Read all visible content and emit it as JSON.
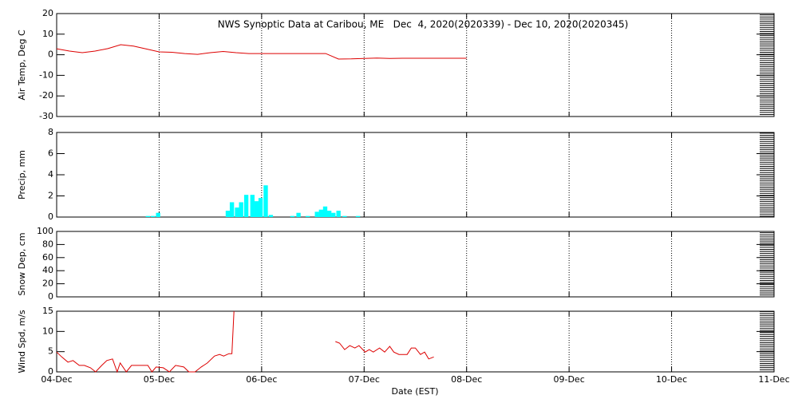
{
  "chart_data": [
    {
      "type": "line",
      "title": "NWS Synoptic Data at Caribou, ME   Dec  4, 2020(2020339) - Dec 10, 2020(2020345)",
      "y_label": "Air Temp, Deg C",
      "color": "#dd0000",
      "ylim": [
        -30,
        20
      ],
      "yticks": [
        -30,
        -20,
        -10,
        0,
        10,
        20
      ],
      "x": [
        0,
        0.125,
        0.25,
        0.375,
        0.5,
        0.625,
        0.75,
        0.875,
        1,
        1.125,
        1.25,
        1.375,
        1.5,
        1.625,
        1.75,
        1.875,
        2,
        2.125,
        2.25,
        2.375,
        2.5,
        2.625,
        2.75,
        2.875,
        3,
        3.125,
        3.25,
        3.375,
        3.5,
        3.625,
        3.75,
        3.875,
        4
      ],
      "values": [
        2.9,
        1.8,
        1.0,
        1.8,
        3.0,
        4.9,
        4.2,
        2.8,
        1.4,
        1.2,
        0.6,
        0.2,
        1.0,
        1.6,
        1.0,
        0.6,
        0.6,
        0.6,
        0.6,
        0.6,
        0.6,
        0.6,
        -2.1,
        -2.0,
        -1.8,
        -1.6,
        -1.8,
        -1.7,
        -1.7,
        -1.7,
        -1.7,
        -1.7,
        -1.7
      ]
    },
    {
      "type": "bar",
      "y_label": "Precip, mm",
      "color": "#00ffff",
      "ylim": [
        0,
        8
      ],
      "yticks": [
        0,
        2,
        4,
        6,
        8
      ],
      "x": [
        0.89,
        0.94,
        0.99,
        1.67,
        1.71,
        1.76,
        1.8,
        1.85,
        1.91,
        1.95,
        1.99,
        2.04,
        2.09,
        2.3,
        2.36,
        2.45,
        2.54,
        2.58,
        2.62,
        2.66,
        2.7,
        2.75,
        2.81,
        2.94
      ],
      "values": [
        0.1,
        0.1,
        0.4,
        0.6,
        1.4,
        0.9,
        1.4,
        2.1,
        2.1,
        1.5,
        1.8,
        3.0,
        0.2,
        0.1,
        0.4,
        0.1,
        0.5,
        0.7,
        1.0,
        0.6,
        0.4,
        0.6,
        0.1,
        0.1
      ]
    },
    {
      "type": "line",
      "y_label": "Snow Dep, cm",
      "ylim": [
        0,
        100
      ],
      "yticks": [
        0,
        20,
        40,
        60,
        80,
        100
      ]
    },
    {
      "type": "line",
      "y_label": "Wind Spd, m/s",
      "x_label": "Date (EST)",
      "color": "#dd0000",
      "ylim": [
        0,
        15
      ],
      "yticks": [
        0,
        5,
        10,
        15
      ],
      "xlim": [
        0,
        7
      ],
      "xticks": [
        {
          "value": 0,
          "label": "04-Dec"
        },
        {
          "value": 1,
          "label": "05-Dec"
        },
        {
          "value": 2,
          "label": "06-Dec"
        },
        {
          "value": 3,
          "label": "07-Dec"
        },
        {
          "value": 4,
          "label": "08-Dec"
        },
        {
          "value": 5,
          "label": "09-Dec"
        },
        {
          "value": 6,
          "label": "10-Dec"
        },
        {
          "value": 7,
          "label": "11-Dec"
        }
      ],
      "x": [
        0,
        0.05,
        0.11,
        0.16,
        0.22,
        0.27,
        0.33,
        0.38,
        0.44,
        0.49,
        0.545,
        0.59,
        0.62,
        0.68,
        0.73,
        0.81,
        0.89,
        0.93,
        0.97,
        1.04,
        1.1,
        1.16,
        1.24,
        1.29,
        1.35,
        1.41,
        1.47,
        1.54,
        1.59,
        1.63,
        1.68,
        1.71,
        1.73,
        2.2,
        2.72,
        2.76,
        2.81,
        2.86,
        2.91,
        2.95,
        3.01,
        3.05,
        3.09,
        3.15,
        3.2,
        3.25,
        3.29,
        3.34,
        3.42,
        3.46,
        3.5,
        3.55,
        3.59,
        3.63,
        3.68
      ],
      "values": [
        4.9,
        3.7,
        2.4,
        2.8,
        1.6,
        1.6,
        1.0,
        0,
        1.6,
        2.8,
        3.2,
        0,
        2.2,
        0,
        1.6,
        1.6,
        1.6,
        0,
        1.2,
        1.0,
        0,
        1.6,
        1.2,
        0,
        0,
        1.2,
        2.2,
        3.9,
        4.3,
        3.9,
        4.5,
        4.5,
        15,
        null,
        7.5,
        7.1,
        5.5,
        6.5,
        5.9,
        6.5,
        4.9,
        5.5,
        4.9,
        5.9,
        4.9,
        6.3,
        4.9,
        4.3,
        4.3,
        5.9,
        5.9,
        4.3,
        4.9,
        3.2,
        3.7
      ]
    }
  ]
}
